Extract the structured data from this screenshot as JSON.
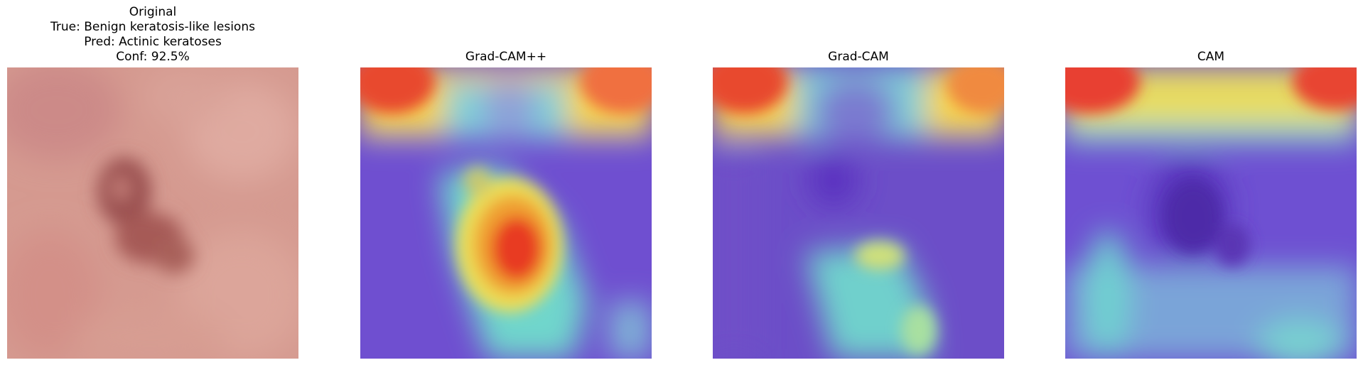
{
  "figure": {
    "panels": [
      {
        "id": "original",
        "title_lines": [
          "Original",
          "True: Benign keratosis-like lesions",
          "Pred: Actinic keratoses",
          "Conf: 92.5%"
        ],
        "image": "dermoscopy-skin-lesion"
      },
      {
        "id": "gradcam-plus-plus",
        "title_lines": [
          "Grad-CAM++"
        ],
        "image": "gradcam-plus-plus-heatmap-overlay"
      },
      {
        "id": "gradcam",
        "title_lines": [
          "Grad-CAM"
        ],
        "image": "gradcam-heatmap-overlay"
      },
      {
        "id": "cam",
        "title_lines": [
          "CAM"
        ],
        "image": "cam-heatmap-overlay"
      }
    ]
  }
}
